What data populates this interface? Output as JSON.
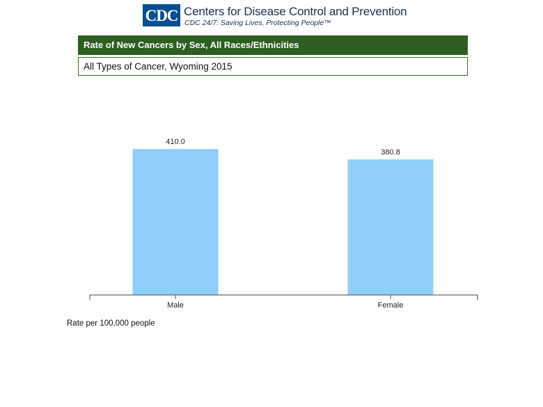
{
  "header": {
    "logo_text": "CDC",
    "org_name": "Centers for Disease Control and Prevention",
    "tagline": "CDC 24/7: Saving Lives, Protecting People™"
  },
  "title": "Rate of New Cancers by Sex, All Races/Ethnicities",
  "subtitle": "All Types of Cancer, Wyoming 2015",
  "footnote": "Rate per 100,000 people",
  "colors": {
    "title_bar": "#2e5e22",
    "bar": "#8fcff9",
    "logo": "#0a4f8f"
  },
  "chart_data": {
    "type": "bar",
    "categories": [
      "Male",
      "Female"
    ],
    "values": [
      410.0,
      380.8
    ],
    "data_labels": [
      "410.0",
      "380.8"
    ],
    "title": "Rate of New Cancers by Sex, All Races/Ethnicities",
    "xlabel": "",
    "ylabel": "",
    "ylim": [
      0,
      430
    ],
    "grid": false
  }
}
